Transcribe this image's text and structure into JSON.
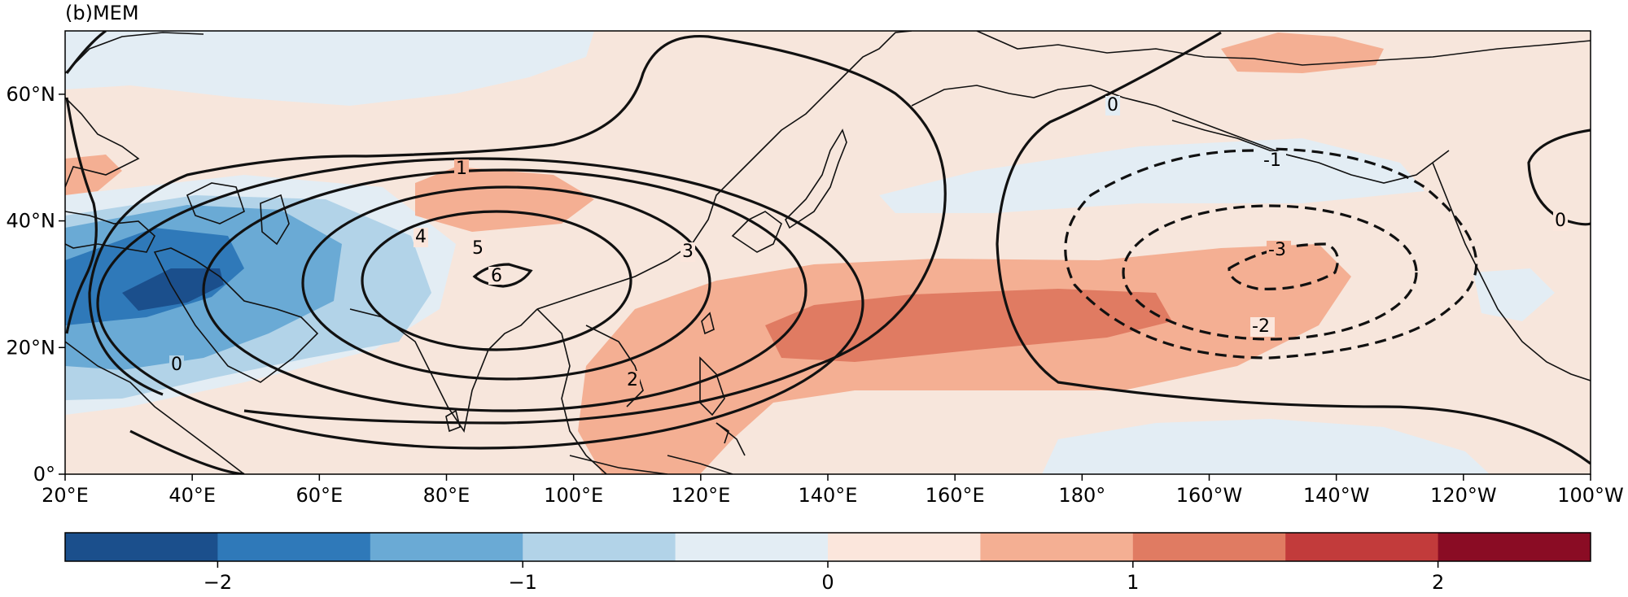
{
  "panel_title": "(b)MEM",
  "x_tick_labels": [
    "20°E",
    "40°E",
    "60°E",
    "80°E",
    "100°E",
    "120°E",
    "140°E",
    "160°E",
    "180°",
    "160°W",
    "140°W",
    "120°W",
    "100°W"
  ],
  "y_tick_labels": [
    "60°N",
    "40°N",
    "20°N",
    "0°"
  ],
  "colorbar": {
    "ticks": [
      "−2",
      "−1",
      "0",
      "1",
      "2"
    ],
    "bin_edges": [
      -2.5,
      -2.0,
      -1.5,
      -1.0,
      -0.5,
      0.0,
      0.5,
      1.0,
      1.5,
      2.0,
      2.5
    ],
    "colors": [
      "#1b4f8c",
      "#2f79b9",
      "#6aaad5",
      "#b2d3e8",
      "#e3edf4",
      "#fbe6dc",
      "#f4af93",
      "#e07b62",
      "#c23b3b",
      "#8a0c24"
    ]
  },
  "contour_labels": {
    "c1": "1",
    "c2": "2",
    "c3": "3",
    "c4": "4",
    "c5": "5",
    "c6": "6",
    "c0a": "0",
    "c0b": "0",
    "c0c": "0",
    "cn1": "-1",
    "cn2": "-2",
    "cn3": "-3"
  },
  "chart_data": {
    "type": "heatmap",
    "title": "(b)MEM",
    "x_range": [
      "20°E",
      "100°W"
    ],
    "y_range": [
      "0°",
      "70°N"
    ],
    "shading_levels": [
      -2.5,
      -2.0,
      -1.5,
      -1.0,
      -0.5,
      0.0,
      0.5,
      1.0,
      1.5,
      2.0,
      2.5
    ],
    "contour_levels_positive": [
      0,
      1,
      2,
      3,
      4,
      5,
      6
    ],
    "contour_levels_negative": [
      -1,
      -2,
      -3
    ],
    "positive_contour_center": {
      "lon": "90°E",
      "lat": "32°N",
      "max": 6
    },
    "negative_contour_center": {
      "lon": "150°W",
      "lat": "32°N",
      "min": -3
    }
  }
}
